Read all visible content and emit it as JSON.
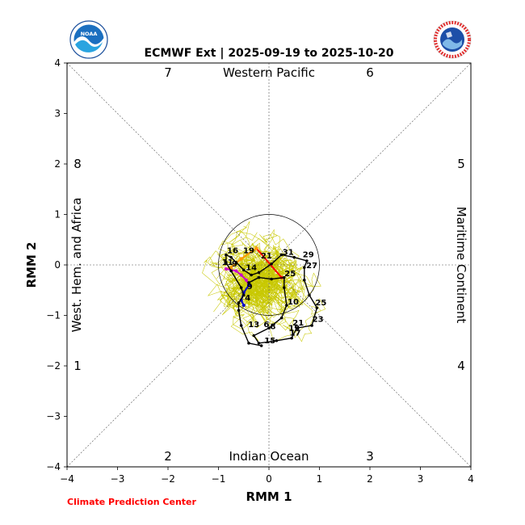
{
  "chart_data": {
    "type": "line",
    "title": "ECMWF Ext | 2025-09-19 to 2025-10-20",
    "xlabel": "RMM 1",
    "ylabel": "RMM 2",
    "xlim": [
      -4,
      4
    ],
    "ylim": [
      -4,
      4
    ],
    "xticks": [
      "−4",
      "−3",
      "−2",
      "−1",
      "0",
      "1",
      "2",
      "3",
      "4"
    ],
    "yticks": [
      "−4",
      "−3",
      "−2",
      "−1",
      "0",
      "1",
      "2",
      "3",
      "4"
    ],
    "grid": false,
    "region_labels": {
      "top": "Western Pacific",
      "bottom": "Indian Ocean",
      "left": "West. Hem. and Africa",
      "right": "Maritime Continent"
    },
    "phase_labels": [
      {
        "label": "7",
        "position": "top-left"
      },
      {
        "label": "6",
        "position": "top-right"
      },
      {
        "label": "5",
        "position": "right-upper"
      },
      {
        "label": "4",
        "position": "right-lower"
      },
      {
        "label": "3",
        "position": "bottom-right"
      },
      {
        "label": "2",
        "position": "bottom-left"
      },
      {
        "label": "1",
        "position": "left-lower"
      },
      {
        "label": "8",
        "position": "left-upper"
      }
    ],
    "unit_circle_radius": 1,
    "observed_segments": [
      {
        "color": "#ff0000",
        "points": [
          [
            0.25,
            -0.25
          ],
          [
            -0.25,
            0.33
          ]
        ]
      },
      {
        "color": "#ff9900",
        "points": [
          [
            -0.25,
            0.33
          ],
          [
            -0.55,
            0.12
          ],
          [
            -0.75,
            -0.05
          ],
          [
            -0.85,
            -0.08
          ]
        ]
      },
      {
        "color": "#cc00cc",
        "points": [
          [
            -0.85,
            -0.08
          ],
          [
            -0.65,
            -0.12
          ],
          [
            -0.55,
            -0.2
          ],
          [
            -0.45,
            -0.3
          ],
          [
            -0.4,
            -0.4
          ]
        ]
      },
      {
        "color": "#0000cc",
        "points": [
          [
            -0.4,
            -0.4
          ],
          [
            -0.5,
            -0.55
          ],
          [
            -0.55,
            -0.7
          ],
          [
            -0.5,
            -0.8
          ]
        ]
      }
    ],
    "forecast_mean": {
      "color": "#000000",
      "points": [
        [
          -0.4,
          -0.35
        ],
        [
          -0.2,
          -0.25
        ],
        [
          0.05,
          -0.28
        ],
        [
          0.3,
          -0.25
        ],
        [
          0.3,
          -0.45
        ],
        [
          0.35,
          -0.8
        ],
        [
          0.25,
          -1.05
        ],
        [
          0.0,
          -1.25
        ],
        [
          -0.3,
          -1.4
        ],
        [
          -0.2,
          -1.55
        ],
        [
          0.15,
          -1.5
        ],
        [
          0.45,
          -1.45
        ],
        [
          0.55,
          -1.25
        ],
        [
          0.85,
          -1.2
        ],
        [
          0.95,
          -0.85
        ],
        [
          0.8,
          -0.6
        ],
        [
          0.7,
          -0.3
        ],
        [
          0.7,
          -0.05
        ],
        [
          0.75,
          0.08
        ],
        [
          0.5,
          0.15
        ],
        [
          0.25,
          0.2
        ],
        [
          0.05,
          0.02
        ],
        [
          -0.2,
          -0.15
        ],
        [
          -0.35,
          -0.2
        ],
        [
          -0.5,
          -0.1
        ],
        [
          -0.65,
          0.05
        ],
        [
          -0.75,
          0.15
        ],
        [
          -0.85,
          0.2
        ],
        [
          -0.85,
          0.05
        ],
        [
          -0.75,
          -0.12
        ],
        [
          -0.55,
          -0.45
        ],
        [
          -0.5,
          -0.6
        ],
        [
          -0.6,
          -0.75
        ],
        [
          -0.6,
          -0.9
        ],
        [
          -0.55,
          -1.2
        ],
        [
          -0.4,
          -1.55
        ],
        [
          -0.15,
          -1.6
        ]
      ]
    },
    "day_labels": [
      {
        "text": "19",
        "x": -0.4,
        "y": 0.23
      },
      {
        "text": "16",
        "x": -0.72,
        "y": 0.23
      },
      {
        "text": "21",
        "x": -0.05,
        "y": 0.13
      },
      {
        "text": "31",
        "x": 0.38,
        "y": 0.2
      },
      {
        "text": "29",
        "x": 0.78,
        "y": 0.15
      },
      {
        "text": "27",
        "x": 0.85,
        "y": -0.06
      },
      {
        "text": "14",
        "x": -0.35,
        "y": -0.1
      },
      {
        "text": "11",
        "x": -0.82,
        "y": 0.0
      },
      {
        "text": "9",
        "x": -0.68,
        "y": -0.03
      },
      {
        "text": "25",
        "x": 0.42,
        "y": -0.22
      },
      {
        "text": "9",
        "x": -0.38,
        "y": -0.48
      },
      {
        "text": "10",
        "x": 0.48,
        "y": -0.78
      },
      {
        "text": "25",
        "x": 1.03,
        "y": -0.8
      },
      {
        "text": "23",
        "x": 0.97,
        "y": -1.13
      },
      {
        "text": "21",
        "x": 0.58,
        "y": -1.2
      },
      {
        "text": "19",
        "x": 0.5,
        "y": -1.3
      },
      {
        "text": "17",
        "x": 0.52,
        "y": -1.4
      },
      {
        "text": "13",
        "x": -0.3,
        "y": -1.23
      },
      {
        "text": "6",
        "x": -0.05,
        "y": -1.23
      },
      {
        "text": "8",
        "x": 0.08,
        "y": -1.27
      },
      {
        "text": "15",
        "x": 0.02,
        "y": -1.55
      },
      {
        "text": "4",
        "x": -0.42,
        "y": -0.7
      }
    ],
    "ensemble": {
      "color": "#c8c800",
      "member_count": 51
    }
  },
  "logos": {
    "left": {
      "icon": "noaa-logo",
      "text": "NOAA"
    },
    "right": {
      "icon": "nws-logo",
      "text": "NATIONAL WEATHER SERVICE"
    }
  },
  "footer": {
    "credit": "Climate Prediction Center"
  },
  "colors": {
    "ensemble": "#c8c800",
    "credit": "#ff0000"
  }
}
